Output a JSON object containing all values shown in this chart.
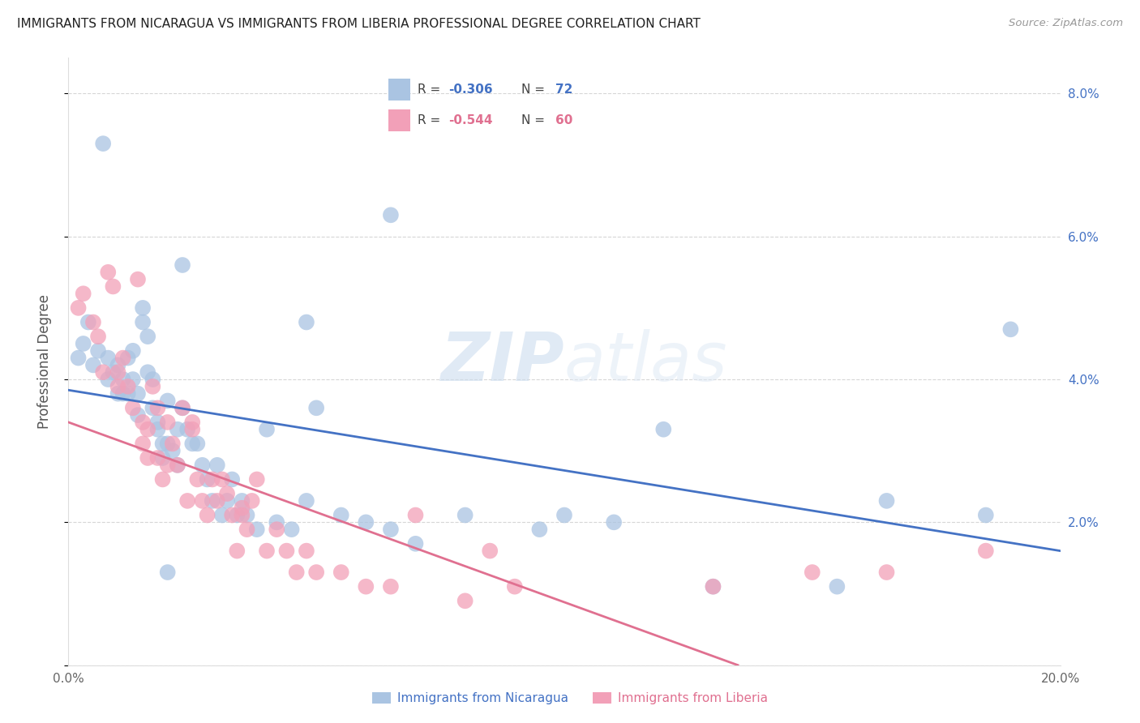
{
  "title": "IMMIGRANTS FROM NICARAGUA VS IMMIGRANTS FROM LIBERIA PROFESSIONAL DEGREE CORRELATION CHART",
  "source": "Source: ZipAtlas.com",
  "ylabel": "Professional Degree",
  "x_min": 0.0,
  "x_max": 0.2,
  "y_min": 0.0,
  "y_max": 0.085,
  "x_ticks": [
    0.0,
    0.05,
    0.1,
    0.15,
    0.2
  ],
  "x_tick_labels": [
    "0.0%",
    "",
    "",
    "",
    "20.0%"
  ],
  "y_ticks": [
    0.0,
    0.02,
    0.04,
    0.06,
    0.08
  ],
  "y_tick_labels_right": [
    "",
    "2.0%",
    "4.0%",
    "6.0%",
    "8.0%"
  ],
  "nicaragua_color": "#aac4e2",
  "liberia_color": "#f2a0b8",
  "nicaragua_line_color": "#4472c4",
  "liberia_line_color": "#e07090",
  "legend_R_nicaragua": "-0.306",
  "legend_N_nicaragua": "72",
  "legend_R_liberia": "-0.544",
  "legend_N_liberia": "60",
  "watermark_zip": "ZIP",
  "watermark_atlas": "atlas",
  "nicaragua_scatter_x": [
    0.002,
    0.003,
    0.004,
    0.005,
    0.006,
    0.007,
    0.008,
    0.008,
    0.009,
    0.01,
    0.01,
    0.011,
    0.011,
    0.012,
    0.012,
    0.013,
    0.013,
    0.014,
    0.014,
    0.015,
    0.015,
    0.016,
    0.016,
    0.017,
    0.017,
    0.018,
    0.018,
    0.019,
    0.019,
    0.02,
    0.02,
    0.021,
    0.022,
    0.022,
    0.023,
    0.024,
    0.025,
    0.026,
    0.027,
    0.028,
    0.029,
    0.03,
    0.031,
    0.032,
    0.033,
    0.034,
    0.035,
    0.036,
    0.038,
    0.04,
    0.042,
    0.045,
    0.048,
    0.05,
    0.055,
    0.06,
    0.065,
    0.07,
    0.08,
    0.095,
    0.1,
    0.11,
    0.12,
    0.13,
    0.023,
    0.048,
    0.065,
    0.155,
    0.165,
    0.185,
    0.02,
    0.19
  ],
  "nicaragua_scatter_y": [
    0.043,
    0.045,
    0.048,
    0.042,
    0.044,
    0.073,
    0.043,
    0.04,
    0.041,
    0.042,
    0.038,
    0.04,
    0.038,
    0.043,
    0.038,
    0.044,
    0.04,
    0.038,
    0.035,
    0.05,
    0.048,
    0.046,
    0.041,
    0.04,
    0.036,
    0.034,
    0.033,
    0.031,
    0.029,
    0.037,
    0.031,
    0.03,
    0.033,
    0.028,
    0.036,
    0.033,
    0.031,
    0.031,
    0.028,
    0.026,
    0.023,
    0.028,
    0.021,
    0.023,
    0.026,
    0.021,
    0.023,
    0.021,
    0.019,
    0.033,
    0.02,
    0.019,
    0.023,
    0.036,
    0.021,
    0.02,
    0.019,
    0.017,
    0.021,
    0.019,
    0.021,
    0.02,
    0.033,
    0.011,
    0.056,
    0.048,
    0.063,
    0.011,
    0.023,
    0.021,
    0.013,
    0.047
  ],
  "liberia_scatter_x": [
    0.002,
    0.003,
    0.005,
    0.006,
    0.007,
    0.008,
    0.009,
    0.01,
    0.01,
    0.011,
    0.012,
    0.013,
    0.014,
    0.015,
    0.015,
    0.016,
    0.016,
    0.017,
    0.018,
    0.018,
    0.019,
    0.02,
    0.02,
    0.021,
    0.022,
    0.023,
    0.024,
    0.025,
    0.026,
    0.027,
    0.028,
    0.029,
    0.03,
    0.031,
    0.032,
    0.033,
    0.034,
    0.035,
    0.036,
    0.037,
    0.038,
    0.04,
    0.042,
    0.044,
    0.046,
    0.048,
    0.05,
    0.055,
    0.06,
    0.065,
    0.07,
    0.08,
    0.085,
    0.09,
    0.13,
    0.15,
    0.165,
    0.185,
    0.035,
    0.025
  ],
  "liberia_scatter_y": [
    0.05,
    0.052,
    0.048,
    0.046,
    0.041,
    0.055,
    0.053,
    0.041,
    0.039,
    0.043,
    0.039,
    0.036,
    0.054,
    0.034,
    0.031,
    0.033,
    0.029,
    0.039,
    0.036,
    0.029,
    0.026,
    0.034,
    0.028,
    0.031,
    0.028,
    0.036,
    0.023,
    0.034,
    0.026,
    0.023,
    0.021,
    0.026,
    0.023,
    0.026,
    0.024,
    0.021,
    0.016,
    0.021,
    0.019,
    0.023,
    0.026,
    0.016,
    0.019,
    0.016,
    0.013,
    0.016,
    0.013,
    0.013,
    0.011,
    0.011,
    0.021,
    0.009,
    0.016,
    0.011,
    0.011,
    0.013,
    0.013,
    0.016,
    0.022,
    0.033
  ],
  "nicaragua_trend_x": [
    0.0,
    0.2
  ],
  "nicaragua_trend_y": [
    0.0385,
    0.016
  ],
  "liberia_trend_x": [
    0.0,
    0.135
  ],
  "liberia_trend_y": [
    0.034,
    0.0
  ]
}
